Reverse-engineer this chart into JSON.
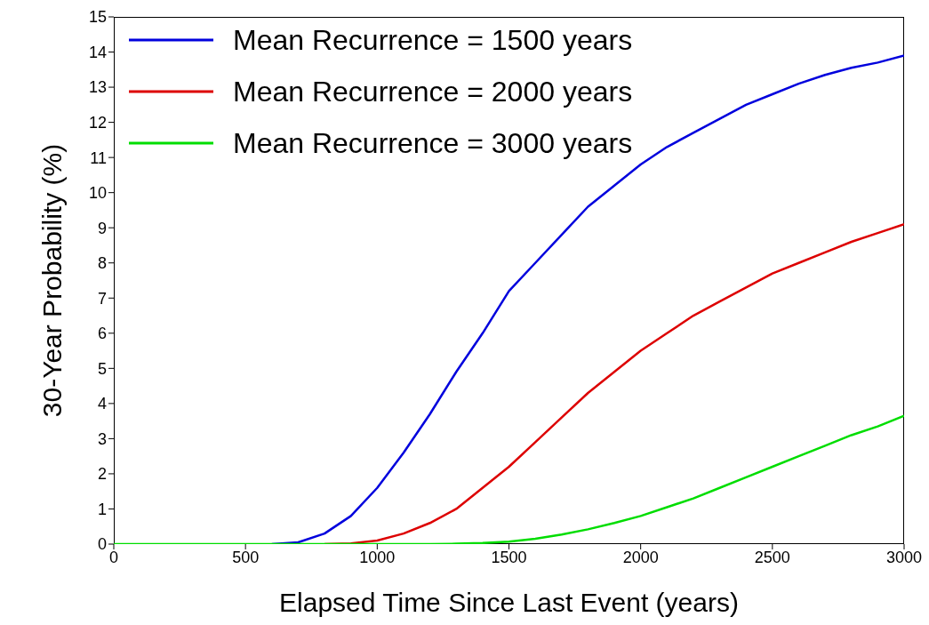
{
  "chart_data": {
    "type": "line",
    "xlabel": "Elapsed Time Since Last Event (years)",
    "ylabel": "30-Year Probability (%)",
    "x": [
      0,
      100,
      200,
      300,
      400,
      500,
      600,
      700,
      800,
      900,
      1000,
      1100,
      1200,
      1300,
      1400,
      1500,
      1600,
      1700,
      1800,
      1900,
      2000,
      2100,
      2200,
      2300,
      2400,
      2500,
      2600,
      2700,
      2800,
      2900,
      3000
    ],
    "series": [
      {
        "name": "Mean Recurrence = 1500 years",
        "color": "#0000dd",
        "values": [
          null,
          null,
          null,
          null,
          null,
          null,
          0,
          0.05,
          0.3,
          0.8,
          1.6,
          2.6,
          3.7,
          4.9,
          6.0,
          7.2,
          8.0,
          8.8,
          9.6,
          10.2,
          10.8,
          11.3,
          11.7,
          12.1,
          12.5,
          12.8,
          13.1,
          13.35,
          13.55,
          13.7,
          13.9
        ]
      },
      {
        "name": "Mean Recurrence = 2000 years",
        "color": "#dd0000",
        "values": [
          null,
          null,
          null,
          null,
          null,
          null,
          null,
          null,
          0,
          0.02,
          0.1,
          0.3,
          0.6,
          1.0,
          1.6,
          2.2,
          2.9,
          3.6,
          4.3,
          4.9,
          5.5,
          6.0,
          6.5,
          6.9,
          7.3,
          7.7,
          8.0,
          8.3,
          8.6,
          8.85,
          9.1
        ]
      },
      {
        "name": "Mean Recurrence = 3000 years",
        "color": "#00dd00",
        "values": [
          0,
          0,
          0,
          0,
          0,
          0,
          0,
          0,
          0,
          0,
          0,
          0,
          0,
          0.01,
          0.03,
          0.07,
          0.15,
          0.27,
          0.42,
          0.6,
          0.8,
          1.05,
          1.3,
          1.6,
          1.9,
          2.2,
          2.5,
          2.8,
          3.1,
          3.35,
          3.65
        ]
      }
    ],
    "xlim": [
      0,
      3000
    ],
    "xticks": [
      0,
      500,
      1000,
      1500,
      2000,
      2500,
      3000
    ],
    "ylim": [
      0,
      15
    ],
    "yticks": [
      0,
      1,
      2,
      3,
      4,
      5,
      6,
      7,
      8,
      9,
      10,
      11,
      12,
      13,
      14,
      15
    ],
    "grid": false,
    "legend": "top left",
    "marker": "none",
    "line_style": "solid"
  }
}
